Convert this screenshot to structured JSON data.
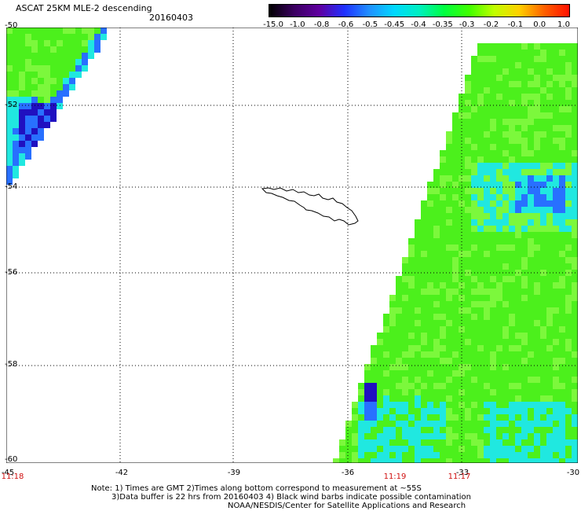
{
  "header": {
    "title": "ASCAT 25KM MLE-2 descending",
    "date": "20160403"
  },
  "colorbar": {
    "labels": [
      "-15.0",
      "-1.0",
      "-0.8",
      "-0.6",
      "-0.5",
      "-0.45",
      "-0.4",
      "-0.35",
      "-0.3",
      "-0.2",
      "-0.1",
      "0.0",
      "1.0"
    ],
    "colors": [
      "#000000",
      "#3a0060",
      "#6000a0",
      "#2030ff",
      "#2090ff",
      "#00d8ff",
      "#00f0c0",
      "#00ff40",
      "#40ff00",
      "#c0ff00",
      "#ffd000",
      "#ff6000",
      "#ff1000"
    ]
  },
  "axes": {
    "lat_labels": [
      "-50",
      "-52",
      "-54",
      "-56",
      "-58",
      "-60"
    ],
    "lon_labels": [
      "-45",
      "-42",
      "-39",
      "-36",
      "-33",
      "-30"
    ],
    "time_labels": [
      "11:18",
      "11:19",
      "11:17"
    ]
  },
  "footer": {
    "note_line1": "Note: 1) Times are GMT 2)Times along bottom correspond to measurement at ~55S",
    "note_line2": "3)Data buffer is 22 hrs from 20160403 4) Black wind barbs indicate possible contamination",
    "note_line3": "NOAA/NESDIS/Center for Satellite Applications and Research"
  },
  "colors": {
    "swath_main": "#4cf01c",
    "swath_light": "#7cf83c",
    "swath_cyan": "#20e8e0",
    "swath_blue": "#2870ff",
    "swath_dark": "#2010c0",
    "swath_purple": "#500080",
    "time_label": "#d01010"
  }
}
